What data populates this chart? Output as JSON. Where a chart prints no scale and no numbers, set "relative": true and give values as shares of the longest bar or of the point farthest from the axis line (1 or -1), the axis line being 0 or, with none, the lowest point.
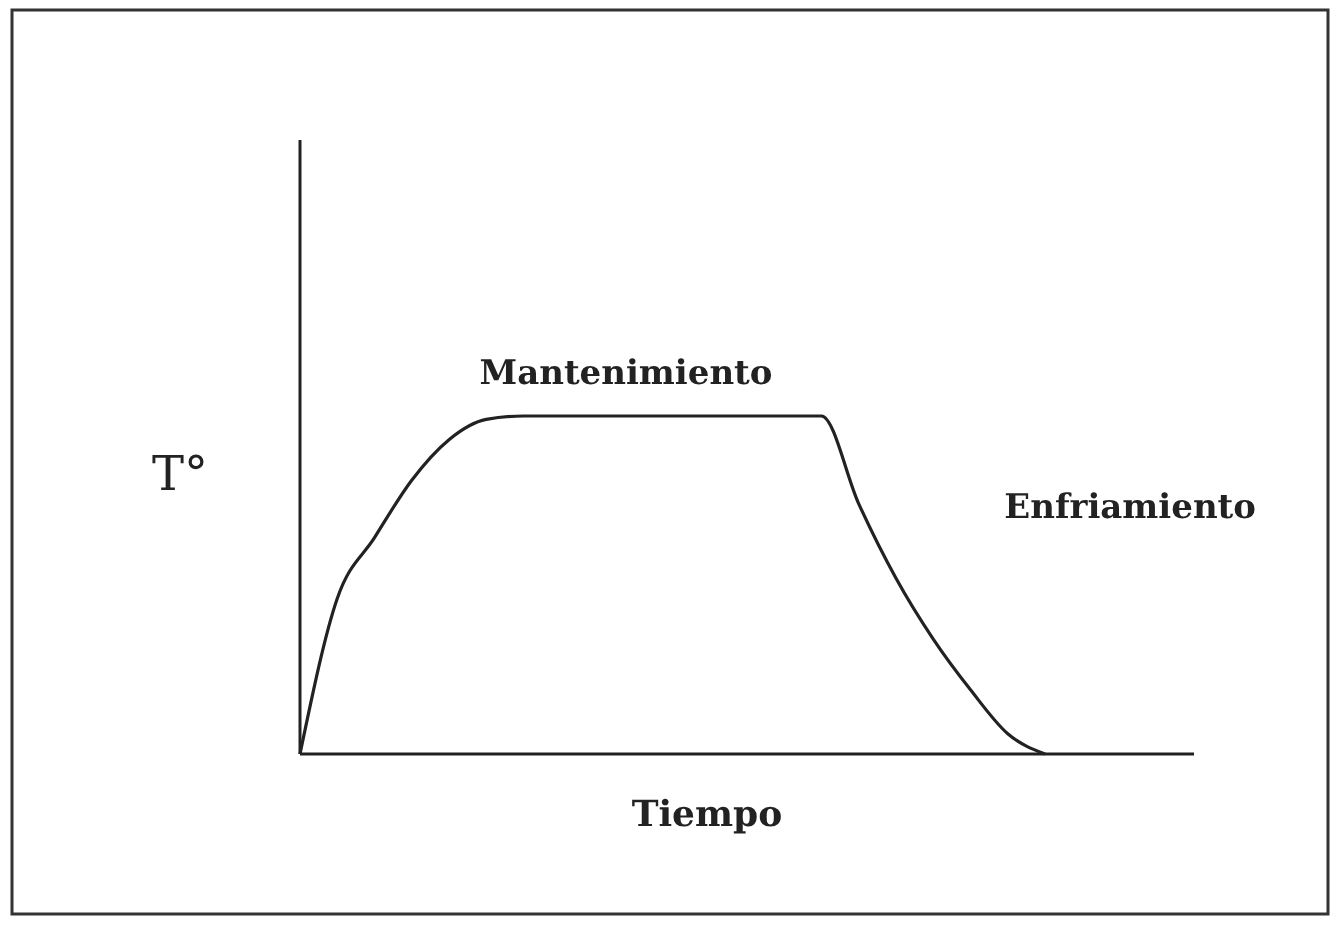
{
  "chart_data": {
    "type": "line",
    "relative": true,
    "xlabel": "Tiempo",
    "ylabel": "T°",
    "annotations": [
      "Mantenimiento",
      "Enfriamiento"
    ],
    "categories": [
      null,
      null,
      null,
      null,
      null,
      null,
      null,
      null,
      null,
      null,
      null,
      null,
      null,
      null,
      null,
      null,
      null,
      null,
      null,
      null,
      null,
      null,
      null,
      null,
      null
    ],
    "series": [
      {
        "color": "#222222",
        "values": [
          0,
          0.46,
          0.64,
          0.81,
          0.93,
          0.99,
          1,
          1,
          1,
          1,
          1,
          1,
          1,
          1,
          1,
          0.74,
          0.52,
          0.34,
          0.19,
          0.06,
          0,
          null,
          null,
          null,
          null
        ]
      }
    ],
    "marker": "none",
    "line_style": "solid"
  }
}
